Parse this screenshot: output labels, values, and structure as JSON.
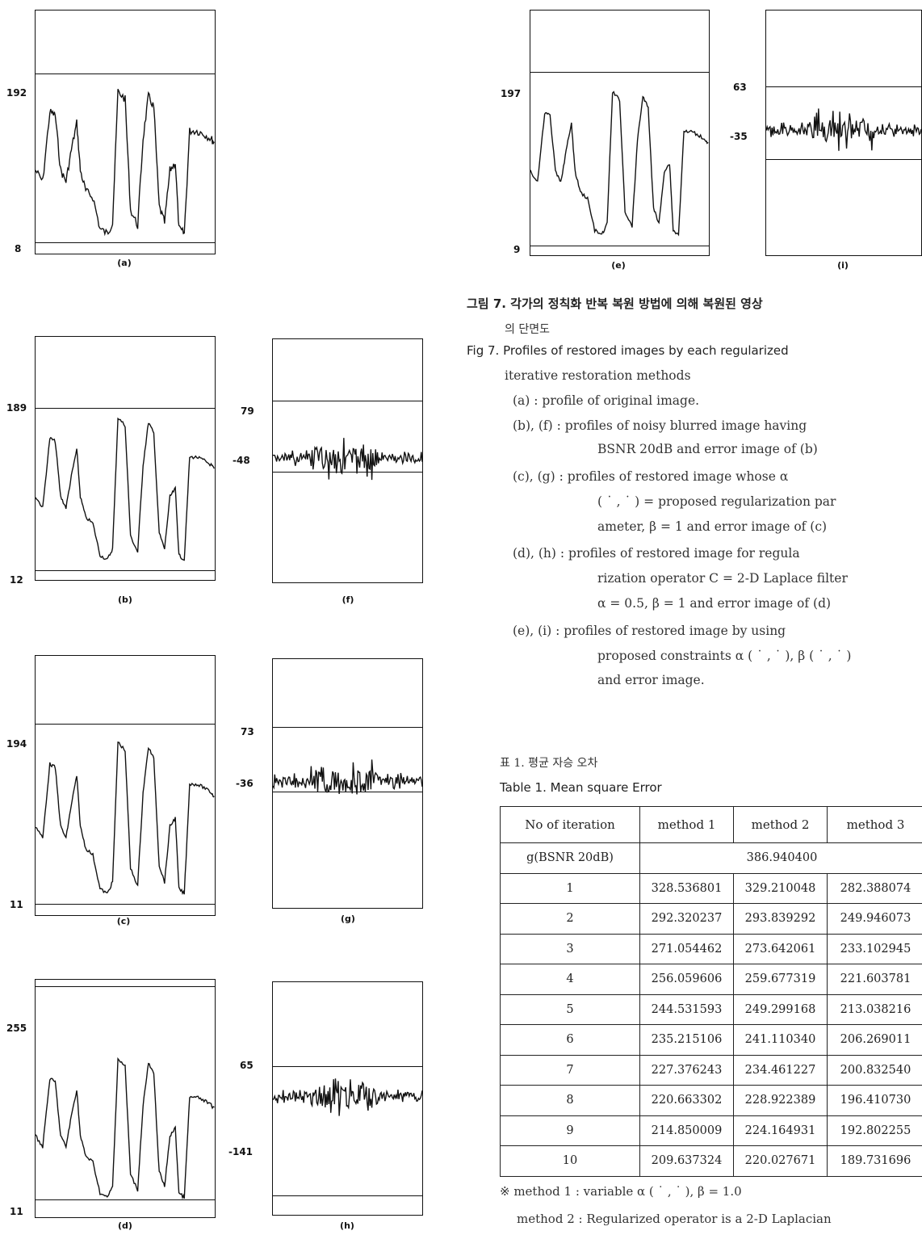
{
  "panels": [
    {
      "id": "a",
      "label": "(a)",
      "y_top": "192",
      "y_bottom": "8"
    },
    {
      "id": "b",
      "label": "(b)",
      "y_top": "189",
      "y_bottom": "12"
    },
    {
      "id": "c",
      "label": "(c)",
      "y_top": "194",
      "y_bottom": "11"
    },
    {
      "id": "d",
      "label": "(d)",
      "y_top": "255",
      "y_bottom": "11"
    },
    {
      "id": "e",
      "label": "(e)",
      "y_top": "197",
      "y_bottom": "9"
    },
    {
      "id": "f",
      "label": "(f)",
      "y_top": "79",
      "y_bottom": "-48"
    },
    {
      "id": "g",
      "label": "(g)",
      "y_top": "73",
      "y_bottom": "-36"
    },
    {
      "id": "h",
      "label": "(h)",
      "y_top": "65",
      "y_bottom": "-141"
    },
    {
      "id": "i",
      "label": "(i)",
      "y_top": "63",
      "y_bottom": "-35"
    }
  ],
  "figure_caption": {
    "korean_line1": "그림 7. 각가의 정칙화 반복 복원 방법에 의해 복원된 영상",
    "korean_line2": "의 단면도",
    "english_line1": "Fig 7. Profiles of restored images by each regularized",
    "english_line2": "iterative restoration methods",
    "items": [
      "(a) : profile of original image.",
      "(b), (f) : profiles of noisy blurred image having",
      "BSNR  20dB and error image of (b)",
      "(c), (g) : profiles of restored image whose α",
      "( ˙ , ˙ ) = proposed regularization par",
      "ameter, β = 1 and error image of (c)",
      "(d), (h) : profiles of restored image for regula",
      "rization operator C = 2-D Laplace filter",
      "α = 0.5, β = 1 and error image of (d)",
      "(e), (i) : profiles of restored image by using",
      "proposed constraints  α  ( ˙ , ˙ ),  β  ( ˙ , ˙ )",
      "and error image."
    ]
  },
  "table_caption": {
    "korean": "표 1. 평균 자승 오차",
    "english": "Table 1. Mean square Error"
  },
  "table": {
    "headers": [
      "No of iteration",
      "method 1",
      "method 2",
      "method 3"
    ],
    "g_row_label": "g(BSNR  20dB)",
    "g_row_value": "386.940400",
    "rows": [
      [
        "1",
        "328.536801",
        "329.210048",
        "282.388074"
      ],
      [
        "2",
        "292.320237",
        "293.839292",
        "249.946073"
      ],
      [
        "3",
        "271.054462",
        "273.642061",
        "233.102945"
      ],
      [
        "4",
        "256.059606",
        "259.677319",
        "221.603781"
      ],
      [
        "5",
        "244.531593",
        "249.299168",
        "213.038216"
      ],
      [
        "6",
        "235.215106",
        "241.110340",
        "206.269011"
      ],
      [
        "7",
        "227.376243",
        "234.461227",
        "200.832540"
      ],
      [
        "8",
        "220.663302",
        "228.922389",
        "196.410730"
      ],
      [
        "9",
        "214.850009",
        "224.164931",
        "192.802255"
      ],
      [
        "10",
        "209.637324",
        "220.027671",
        "189.731696"
      ]
    ]
  },
  "notes": [
    "※ method 1 : variable α  ( ˙ , ˙ ),  β = 1.0",
    "method 2 : Regularized operator is a 2-D Laplacian"
  ]
}
